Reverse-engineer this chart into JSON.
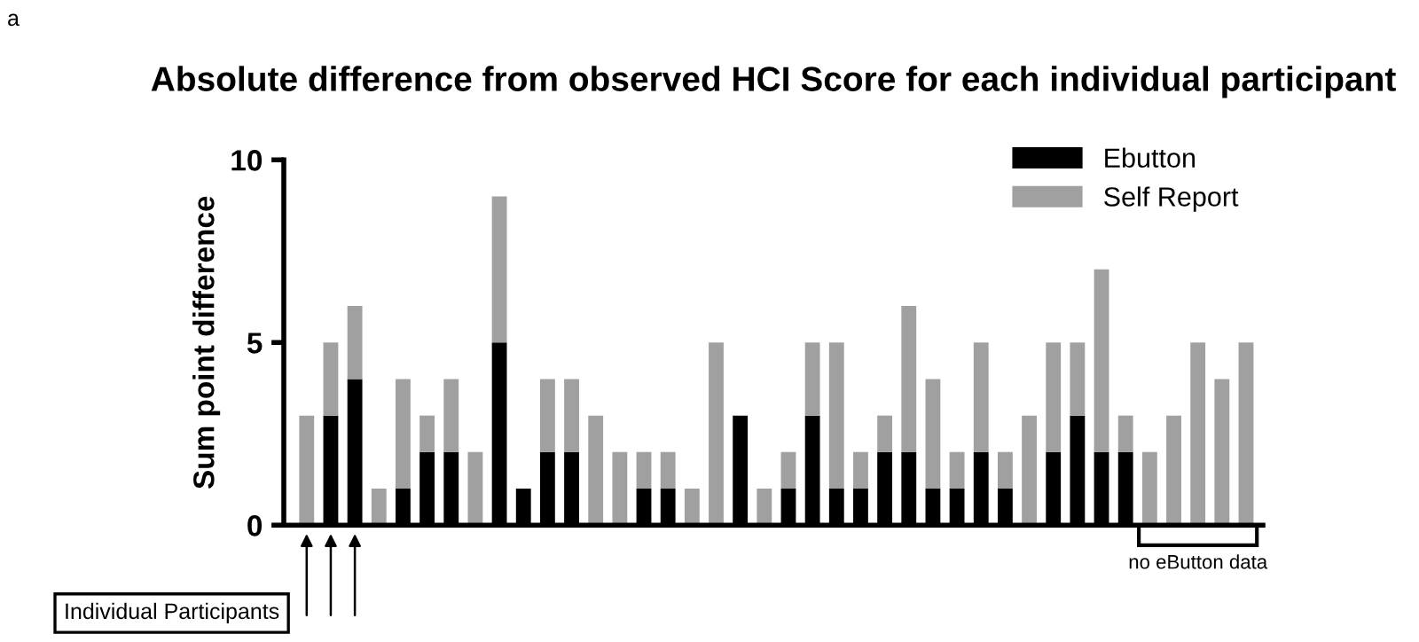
{
  "chart_data": {
    "type": "bar",
    "stacked": true,
    "title": "Absolute difference from observed HCI Score for each individual participant",
    "ylabel": "Sum point difference",
    "categories": [
      null,
      null,
      null,
      null,
      null,
      null,
      null,
      null,
      null,
      null,
      null,
      null,
      null,
      null,
      null,
      null,
      null,
      null,
      null,
      null,
      null,
      null,
      null,
      null,
      null,
      null,
      null,
      null,
      null,
      null,
      null,
      null,
      null,
      null,
      null,
      null,
      null,
      null,
      null,
      null
    ],
    "series": [
      {
        "name": "Ebutton",
        "color": "#000000",
        "values": [
          0,
          3,
          4,
          0,
          1,
          2,
          2,
          0,
          5,
          1,
          2,
          2,
          0,
          0,
          1,
          1,
          0,
          0,
          3,
          0,
          1,
          3,
          1,
          1,
          2,
          2,
          1,
          1,
          2,
          1,
          0,
          2,
          3,
          2,
          2,
          null,
          null,
          null,
          null,
          null
        ]
      },
      {
        "name": "Self Report",
        "color": "#a0a0a0",
        "values": [
          3,
          2,
          2,
          1,
          3,
          1,
          2,
          2,
          4,
          0,
          2,
          2,
          3,
          2,
          1,
          1,
          1,
          5,
          0,
          1,
          1,
          2,
          4,
          1,
          1,
          4,
          3,
          1,
          3,
          1,
          3,
          3,
          2,
          5,
          1,
          2,
          3,
          5,
          4,
          5
        ]
      }
    ],
    "ylim": [
      0,
      10
    ],
    "yticks": [
      0,
      5,
      10
    ],
    "grid": false,
    "legend": "top right",
    "annotations": [
      "a",
      "Individual Participants",
      "no eButton data"
    ]
  }
}
